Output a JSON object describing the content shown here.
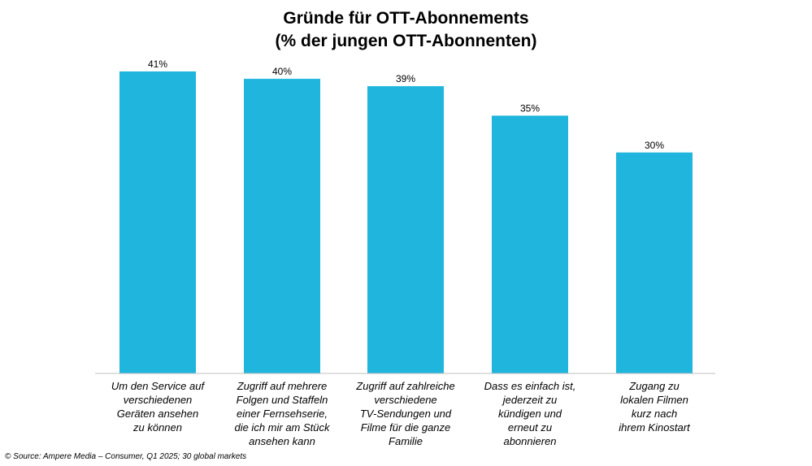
{
  "chart_data": {
    "type": "bar",
    "title": "Gründe für OTT-Abonnements",
    "subtitle": "(% der jungen OTT-Abonnenten)",
    "categories": [
      "Um den Service auf\nverschiedenen\nGeräten ansehen\nzu können",
      "Zugriff auf mehrere\nFolgen und Staffeln\neiner Fernsehserie,\ndie ich mir am Stück\nansehen kann",
      "Zugriff auf zahlreiche\nverschiedene\nTV-Sendungen und\nFilme für die ganze\nFamilie",
      "Dass es einfach ist,\njederzeit zu\nkündigen und\nerneut zu\nabonnieren",
      "Zugang zu\nlokalen Filmen\nkurz nach\nihrem Kinostart"
    ],
    "values": [
      41,
      40,
      39,
      35,
      30
    ],
    "data_labels": [
      "41%",
      "40%",
      "39%",
      "35%",
      "30%"
    ],
    "xlabel": "",
    "ylabel": "",
    "ylim": [
      0,
      41
    ],
    "grid": false,
    "bar_color": "#20b5dd"
  },
  "source": "© Source: Ampere Media – Consumer, Q1 2025; 30 global markets"
}
